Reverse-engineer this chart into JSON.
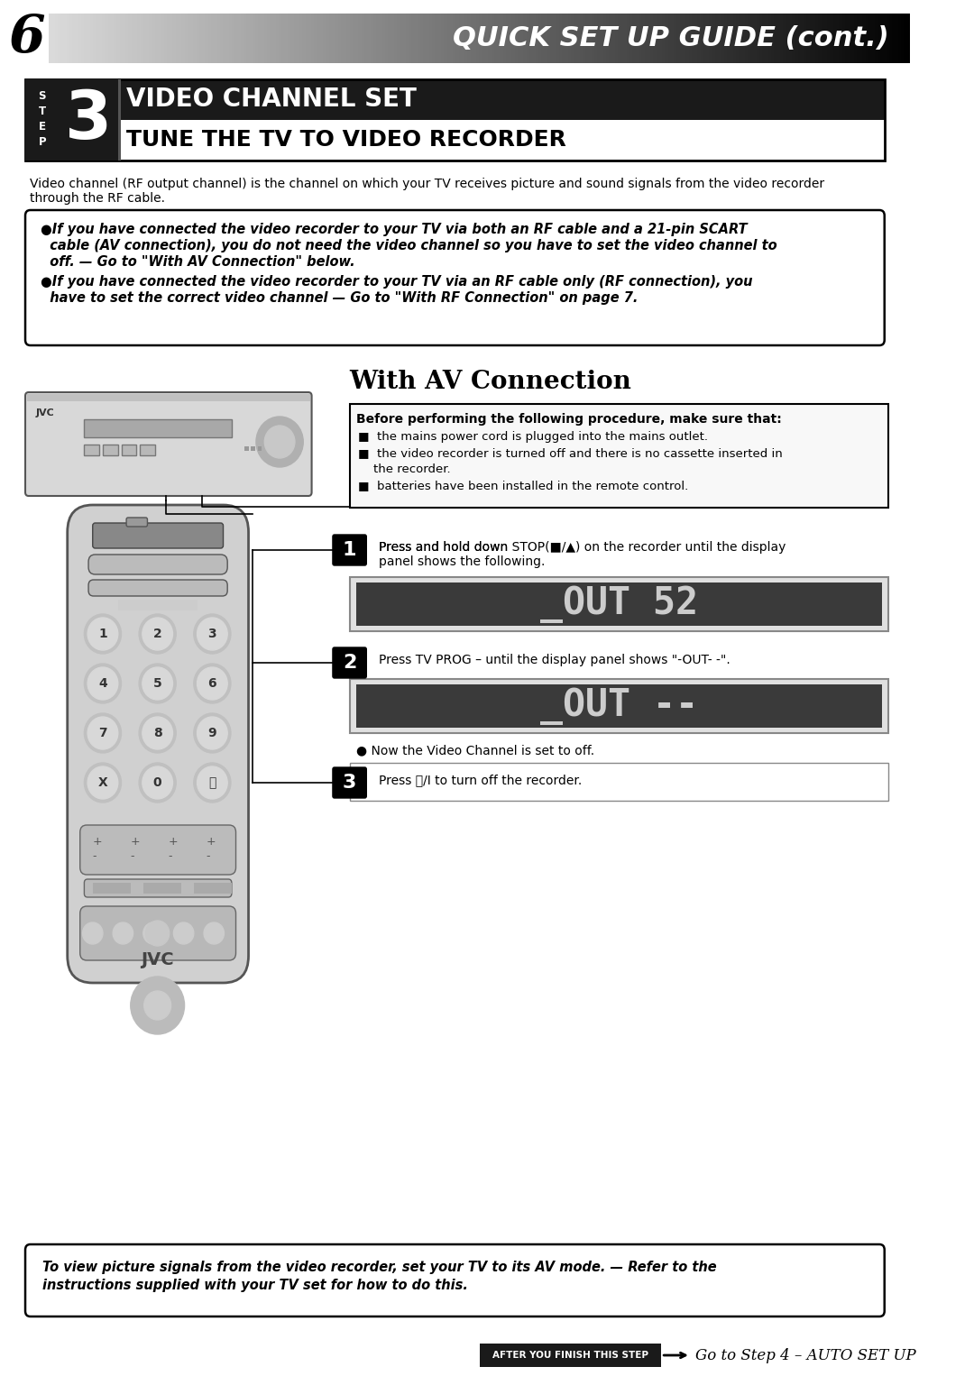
{
  "page_number": "6",
  "header_title": "QUICK SET UP GUIDE (cont.)",
  "step_title_top": "VIDEO CHANNEL SET",
  "step_title_bottom": "TUNE THE TV TO VIDEO RECORDER",
  "intro_text": "Video channel (RF output channel) is the channel on which your TV receives picture and sound signals from the video recorder\nthrough the RF cable.",
  "bullet1_line1": "●If you have connected the video recorder to your TV via both an RF cable and a 21-pin SCART",
  "bullet1_line2": "  cable (AV connection), you do not need the video channel so you have to set the video channel to",
  "bullet1_line3": "  off. — Go to \"With AV Connection\" below.",
  "bullet2_line1": "●If you have connected the video recorder to your TV via an RF cable only (RF connection), you",
  "bullet2_line2": "  have to set the correct video channel — Go to \"With RF Connection\" on page 7.",
  "av_title": "With AV Connection",
  "prereq_title": "Before performing the following procedure, make sure that:",
  "prereq1": "the mains power cord is plugged into the mains outlet.",
  "prereq2a": "the video recorder is turned off and there is no cassette inserted in",
  "prereq2b": "    the recorder.",
  "prereq3": "batteries have been installed in the remote control.",
  "step1_text1": "Press and hold down ",
  "step1_bold": "STOP(■/▲)",
  "step1_text2": " on the recorder until the display",
  "step1_text3": "panel shows the following.",
  "step1_display": "_OUT 52",
  "step2_text1": "Press ",
  "step2_bold": "TV PROG",
  "step2_text2": " – until the display panel shows \"-OUT- -\".",
  "step2_display": "_OUT --",
  "step2_note": "● Now the Video Channel is set to off.",
  "step3_text": "Press ⏻/I to turn off the recorder.",
  "bottom_note1": "To view picture signals from the video recorder, set your TV to its AV mode. — Refer to the",
  "bottom_note2": "instructions supplied with your TV set for how to do this.",
  "footer_label": "AFTER YOU FINISH THIS STEP",
  "footer_text": "Go to Step 4 – AUTO SET UP",
  "bg_color": "#ffffff"
}
